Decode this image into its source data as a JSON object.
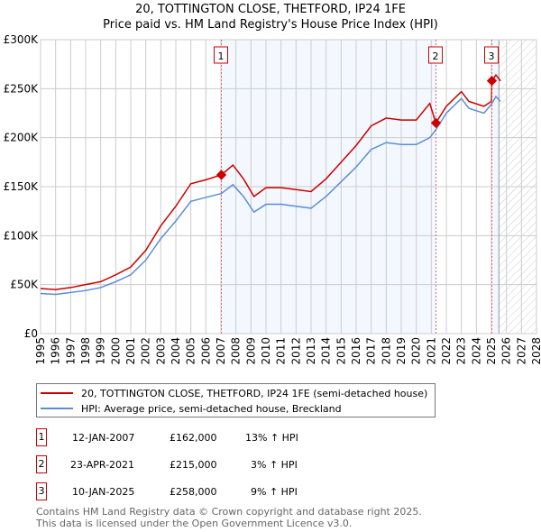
{
  "title": "20, TOTTINGTON CLOSE, THETFORD, IP24 1FE",
  "subtitle": "Price paid vs. HM Land Registry's House Price Index (HPI)",
  "chart_data": {
    "type": "line",
    "ylim": [
      0,
      300000
    ],
    "xlim": [
      1995,
      2028
    ],
    "yticks": [
      0,
      50000,
      100000,
      150000,
      200000,
      250000,
      300000
    ],
    "ytick_labels": [
      "£0",
      "£50K",
      "£100K",
      "£150K",
      "£200K",
      "£250K",
      "£300K"
    ],
    "xticks": [
      1995,
      1996,
      1997,
      1998,
      1999,
      2000,
      2001,
      2002,
      2003,
      2004,
      2005,
      2006,
      2007,
      2008,
      2009,
      2010,
      2011,
      2012,
      2013,
      2014,
      2015,
      2016,
      2017,
      2018,
      2019,
      2020,
      2021,
      2022,
      2023,
      2024,
      2025,
      2026,
      2027,
      2028
    ],
    "grid": true,
    "series": [
      {
        "name": "20, TOTTINGTON CLOSE, THETFORD, IP24 1FE (semi-detached house)",
        "color": "#cc0000",
        "x": [
          1995,
          1996,
          1997,
          1998,
          1999,
          2000,
          2001,
          2002,
          2003,
          2004,
          2005,
          2006,
          2007.03,
          2007.8,
          2008.5,
          2009.2,
          2010,
          2011,
          2012,
          2013,
          2014,
          2015,
          2016,
          2017,
          2018,
          2019,
          2020,
          2020.9,
          2021.3,
          2022,
          2023,
          2023.5,
          2024.5,
          2025.0,
          2025.03,
          2025.3,
          2025.6
        ],
        "y": [
          46000,
          45000,
          47000,
          50000,
          53000,
          60000,
          68000,
          85000,
          110000,
          130000,
          153000,
          157000,
          162000,
          172000,
          158000,
          140000,
          149000,
          149000,
          147000,
          145000,
          158000,
          175000,
          192000,
          212000,
          220000,
          218000,
          218000,
          235000,
          215000,
          232000,
          247000,
          237000,
          232000,
          237000,
          258000,
          264000,
          258000
        ]
      },
      {
        "name": "HPI: Average price, semi-detached house, Breckland",
        "color": "#5b8ed6",
        "x": [
          1995,
          1996,
          1997,
          1998,
          1999,
          2000,
          2001,
          2002,
          2003,
          2004,
          2005,
          2006,
          2007.03,
          2007.8,
          2008.5,
          2009.2,
          2010,
          2011,
          2012,
          2013,
          2014,
          2015,
          2016,
          2017,
          2018,
          2019,
          2020,
          2020.9,
          2021.3,
          2022,
          2023,
          2023.5,
          2024.5,
          2025.0,
          2025.3,
          2025.6
        ],
        "y": [
          41000,
          40000,
          42000,
          44000,
          47000,
          53000,
          60000,
          75000,
          97000,
          115000,
          135000,
          139000,
          143000,
          152000,
          140000,
          124000,
          132000,
          132000,
          130000,
          128000,
          140000,
          155000,
          170000,
          188000,
          195000,
          193000,
          193000,
          200000,
          208000,
          225000,
          240000,
          230000,
          225000,
          234000,
          242000,
          237000
        ]
      }
    ],
    "sales": [
      {
        "label": "1",
        "x": 2007.03,
        "y": 162000
      },
      {
        "label": "2",
        "x": 2021.31,
        "y": 215000
      },
      {
        "label": "3",
        "x": 2025.03,
        "y": 258000
      }
    ],
    "shaded_ranges": [
      [
        2007.03,
        2021.31
      ],
      [
        2025.03,
        2025.5
      ]
    ],
    "hatched_from": 2025.5
  },
  "legend": [
    {
      "label": "20, TOTTINGTON CLOSE, THETFORD, IP24 1FE (semi-detached house)",
      "color": "#cc0000"
    },
    {
      "label": "HPI: Average price, semi-detached house, Breckland",
      "color": "#5b8ed6"
    }
  ],
  "sales_table": [
    {
      "num": "1",
      "date": "12-JAN-2007",
      "price": "£162,000",
      "hpi": "13% ↑ HPI"
    },
    {
      "num": "2",
      "date": "23-APR-2021",
      "price": "£215,000",
      "hpi": "3% ↑ HPI"
    },
    {
      "num": "3",
      "date": "10-JAN-2025",
      "price": "£258,000",
      "hpi": "9% ↑ HPI"
    }
  ],
  "footer": [
    "Contains HM Land Registry data © Crown copyright and database right 2025.",
    "This data is licensed under the Open Government Licence v3.0."
  ]
}
